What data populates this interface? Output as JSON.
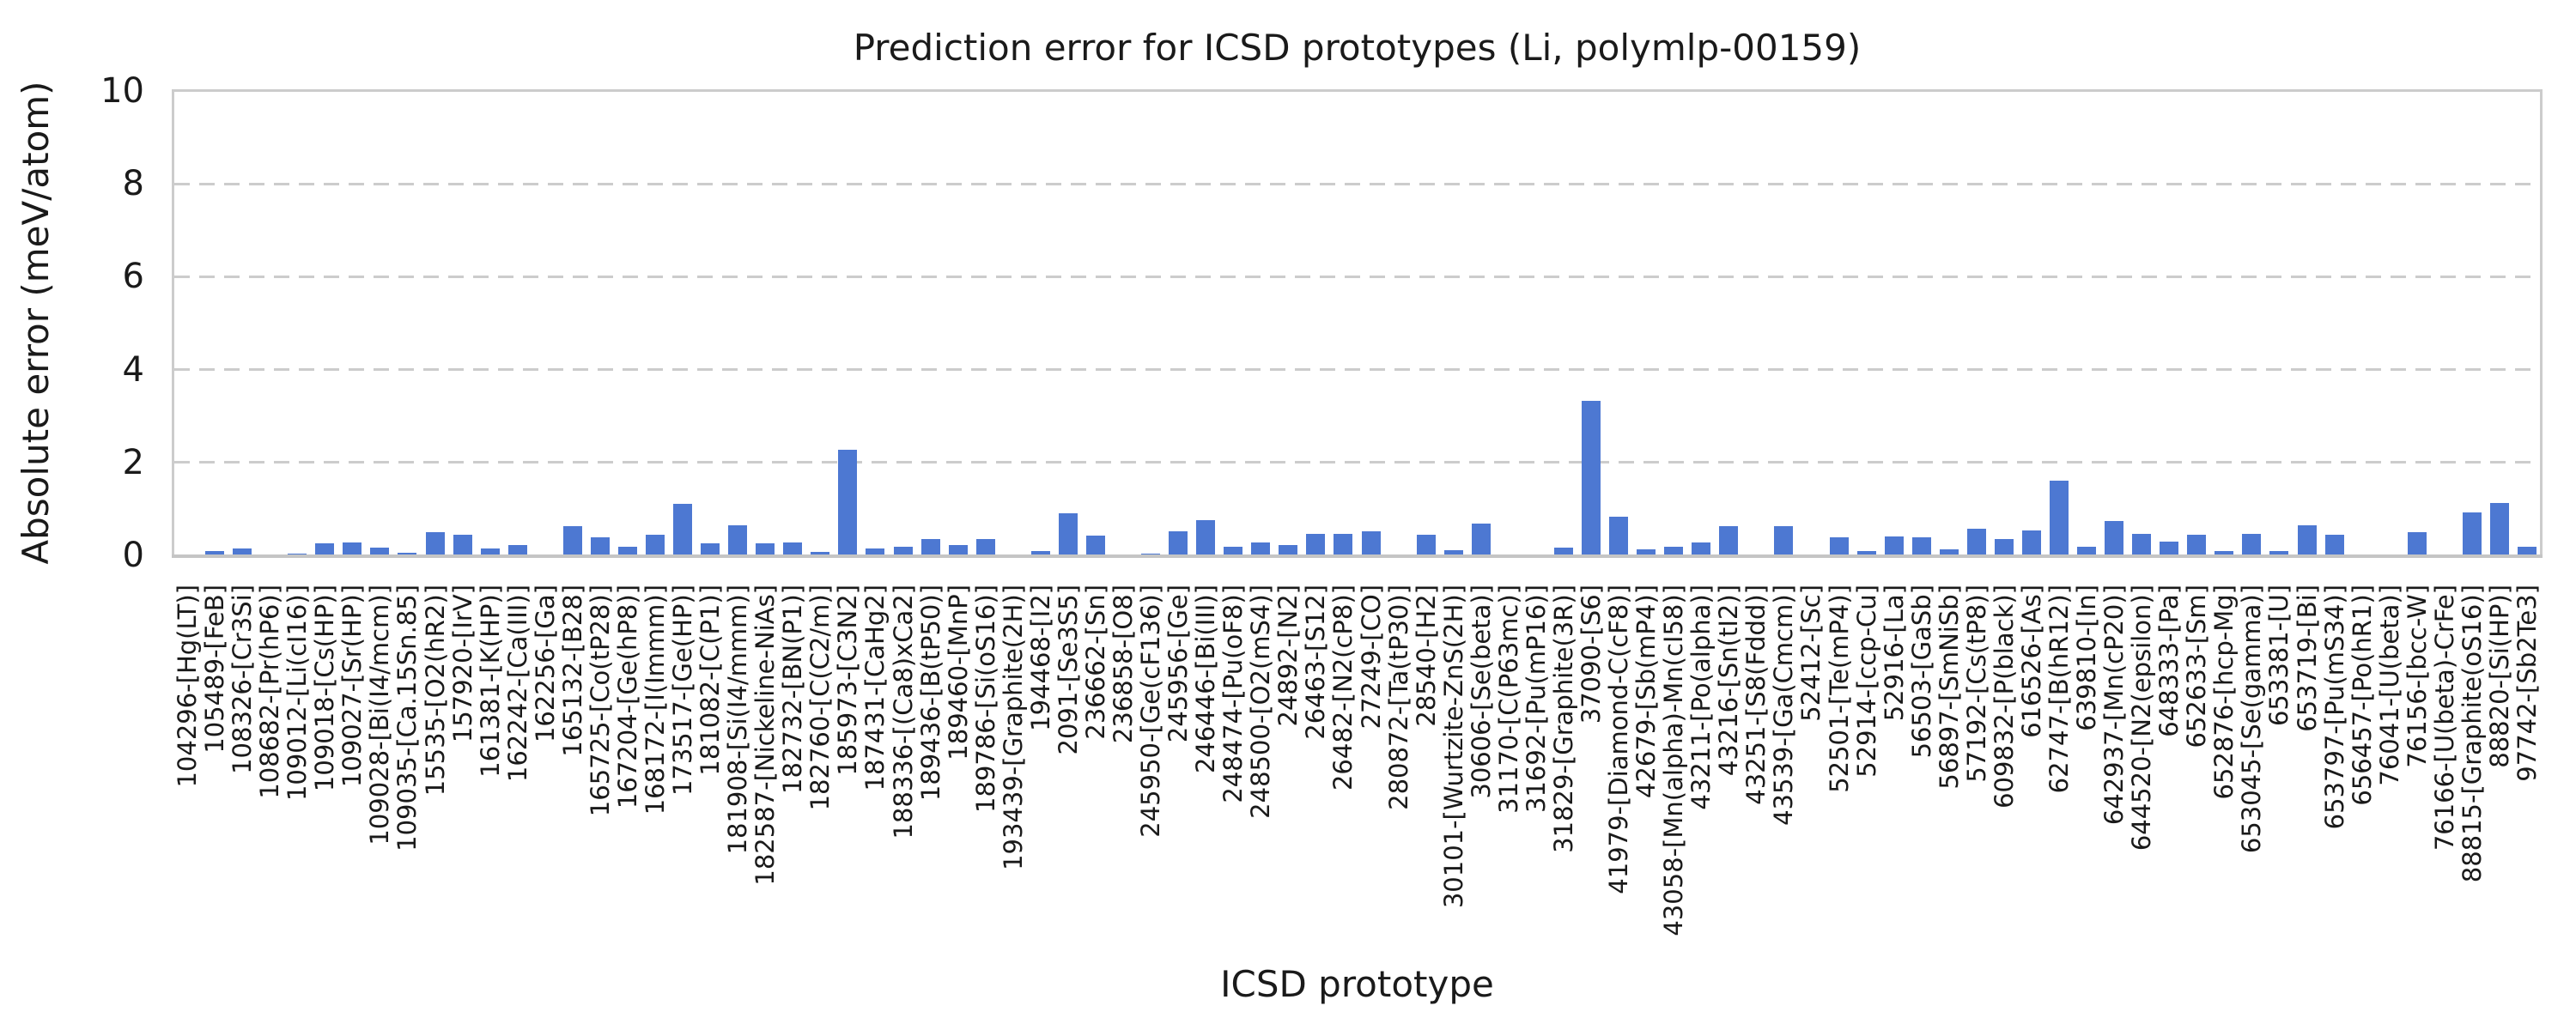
{
  "chart_data": {
    "type": "bar",
    "title": "Prediction error for ICSD prototypes (Li, polymlp-00159)",
    "xlabel": "ICSD prototype",
    "ylabel": "Absolute error (meV/atom)",
    "ylim": [
      0,
      10
    ],
    "yticks": [
      0,
      2,
      4,
      6,
      8,
      10
    ],
    "grid": "horizontal dashed gridlines at 2, 4, 6, 8",
    "legend": "none",
    "bar_color": "#4d78d2",
    "grid_color": "#cccccc",
    "text_color": "#1a1a1a",
    "categories": [
      "104296-[Hg(LT)]",
      "105489-[FeB]",
      "108326-[Cr3Si]",
      "108682-[Pr(hP6)]",
      "109012-[Li(cI16)]",
      "109018-[Cs(HP)]",
      "109027-[Sr(HP)]",
      "109028-[Bi(I4/mcm)]",
      "109035-[Ca.15Sn.85]",
      "15535-[O2(hR2)]",
      "157920-[IrV]",
      "161381-[K(HP)]",
      "162242-[Ca(III)]",
      "162256-[Ga]",
      "165132-[B28]",
      "165725-[Co(tP28)]",
      "167204-[Ge(hP8)]",
      "168172-[I(Immm)]",
      "173517-[Ge(HP)]",
      "181082-[C(P1)]",
      "181908-[Si(I4/mmm)]",
      "182587-[Nickeline-NiAs]",
      "182732-[BN(P1)]",
      "182760-[C(C2/m)]",
      "185973-[C3N2]",
      "187431-[CaHg2]",
      "188336-[(Ca8)xCa2]",
      "189436-[B(tP50)]",
      "189460-[MnP]",
      "189786-[Si(oS16)]",
      "193439-[Graphite(2H)]",
      "194468-[I2]",
      "2091-[Se3S5]",
      "236662-[Sn]",
      "236858-[O8]",
      "245950-[Ge(cF136)]",
      "245956-[Ge]",
      "246446-[Bi(III)]",
      "248474-[Pu(oF8)]",
      "248500-[O2(mS4)]",
      "24892-[N2]",
      "26463-[S12]",
      "26482-[N2(cP8)]",
      "27249-[CO]",
      "280872-[Ta(tP30)]",
      "28540-[H2]",
      "30101-[Wurtzite-ZnS(2H)]",
      "30606-[Se(beta)]",
      "31170-[C(P63mc)]",
      "31692-[Pu(mP16)]",
      "31829-[Graphite(3R)]",
      "37090-[S6]",
      "41979-[Diamond-C(cF8)]",
      "42679-[Sb(mP4)]",
      "43058-[Mn(alpha)-Mn(cI58)]",
      "43211-[Po(alpha)]",
      "43216-[Sn(tI2)]",
      "43251-[S8(Fddd)]",
      "43539-[Ga(Cmcm)]",
      "52412-[Sc]",
      "52501-[Te(mP4)]",
      "52914-[ccp-Cu]",
      "52916-[La]",
      "56503-[GaSb]",
      "56897-[SmNiSb]",
      "57192-[Cs(tP8)]",
      "609832-[P(black)]",
      "616526-[As]",
      "62747-[B(hR12)]",
      "639810-[In]",
      "642937-[Mn(cP20)]",
      "644520-[N2(epsilon)]",
      "648333-[Pa]",
      "652633-[Sm]",
      "652876-[hcp-Mg]",
      "653045-[Se(gamma)]",
      "653381-[U]",
      "653719-[Bi]",
      "653797-[Pu(mS34)]",
      "656457-[Po(hR1)]",
      "76041-[U(beta)]",
      "76156-[bcc-W]",
      "76166-[U(beta)-CrFe]",
      "88815-[Graphite(oS16)]",
      "88820-[Si(HP)]",
      "97742-[Sb2Te3]"
    ],
    "values": [
      0.02,
      0.09,
      0.14,
      0.02,
      0.03,
      0.26,
      0.27,
      0.16,
      0.06,
      0.5,
      0.45,
      0.15,
      0.22,
      0.02,
      0.63,
      0.39,
      0.18,
      0.44,
      1.1,
      0.26,
      0.65,
      0.25,
      0.27,
      0.07,
      2.28,
      0.15,
      0.18,
      0.36,
      0.22,
      0.35,
      0.02,
      0.09,
      0.9,
      0.43,
      0.01,
      0.04,
      0.52,
      0.76,
      0.18,
      0.28,
      0.23,
      0.46,
      0.47,
      0.52,
      0.01,
      0.44,
      0.11,
      0.69,
      0.01,
      0.01,
      0.16,
      3.33,
      0.84,
      0.13,
      0.19,
      0.27,
      0.63,
      0.01,
      0.63,
      0.01,
      0.38,
      0.09,
      0.4,
      0.38,
      0.13,
      0.57,
      0.35,
      0.54,
      1.6,
      0.18,
      0.74,
      0.46,
      0.3,
      0.44,
      0.09,
      0.47,
      0.1,
      0.65,
      0.45,
      0.01,
      0.01,
      0.5,
      0.01,
      0.92,
      1.12,
      0.19
    ]
  }
}
